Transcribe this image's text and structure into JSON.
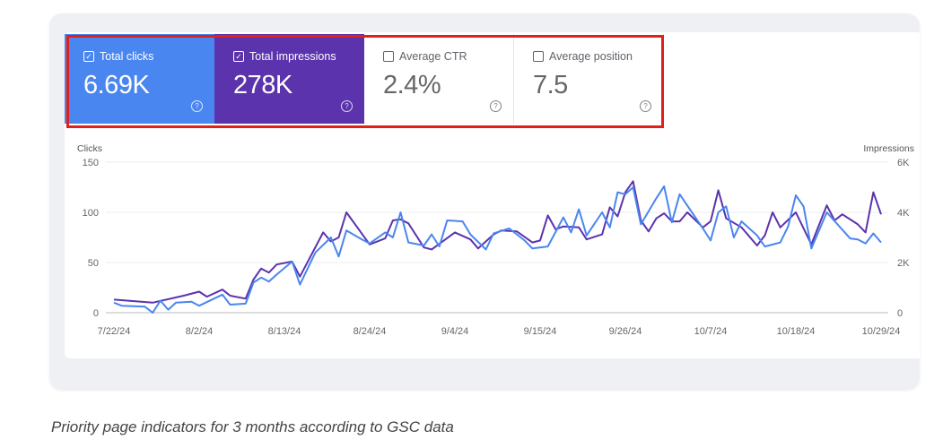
{
  "scorecards": [
    {
      "label": "Total clicks",
      "value": "6.69K",
      "checked": true,
      "color": "#4a86f0"
    },
    {
      "label": "Total impressions",
      "value": "278K",
      "checked": true,
      "color": "#5b33ad"
    },
    {
      "label": "Average CTR",
      "value": "2.4%",
      "checked": false
    },
    {
      "label": "Average position",
      "value": "7.5",
      "checked": false
    }
  ],
  "highlight_color": "#e0201b",
  "caption": "Priority page indicators for 3 months according to GSC data",
  "chart_data": {
    "type": "line",
    "ylabel_left": "Clicks",
    "ylabel_right": "Impressions",
    "ylim_left": [
      0,
      150
    ],
    "ylim_right": [
      0,
      6000
    ],
    "yticks_left": [
      "0",
      "50",
      "100",
      "150"
    ],
    "yticks_right": [
      "0",
      "2K",
      "4K",
      "6K"
    ],
    "xticks": [
      "7/22/24",
      "8/2/24",
      "8/13/24",
      "8/24/24",
      "9/4/24",
      "9/15/24",
      "9/26/24",
      "10/7/24",
      "10/18/24",
      "10/29/24"
    ],
    "xlim": [
      "2024-07-22",
      "2024-10-29"
    ],
    "grid": true,
    "series": [
      {
        "name": "Clicks",
        "axis": "left",
        "color": "#4a86f0",
        "points": [
          [
            "2024-07-22",
            10
          ],
          [
            "2024-07-23",
            7
          ],
          [
            "2024-07-26",
            6
          ],
          [
            "2024-07-27",
            0
          ],
          [
            "2024-07-28",
            12
          ],
          [
            "2024-07-29",
            3
          ],
          [
            "2024-07-30",
            10
          ],
          [
            "2024-08-01",
            11
          ],
          [
            "2024-08-02",
            7
          ],
          [
            "2024-08-05",
            18
          ],
          [
            "2024-08-06",
            8
          ],
          [
            "2024-08-08",
            9
          ],
          [
            "2024-08-09",
            30
          ],
          [
            "2024-08-10",
            35
          ],
          [
            "2024-08-11",
            31
          ],
          [
            "2024-08-12",
            38
          ],
          [
            "2024-08-14",
            51
          ],
          [
            "2024-08-15",
            28
          ],
          [
            "2024-08-17",
            60
          ],
          [
            "2024-08-19",
            75
          ],
          [
            "2024-08-20",
            56
          ],
          [
            "2024-08-21",
            82
          ],
          [
            "2024-08-23",
            73
          ],
          [
            "2024-08-24",
            69
          ],
          [
            "2024-08-26",
            80
          ],
          [
            "2024-08-27",
            75
          ],
          [
            "2024-08-28",
            100
          ],
          [
            "2024-08-29",
            70
          ],
          [
            "2024-08-31",
            67
          ],
          [
            "2024-09-01",
            78
          ],
          [
            "2024-09-02",
            66
          ],
          [
            "2024-09-03",
            92
          ],
          [
            "2024-09-05",
            91
          ],
          [
            "2024-09-06",
            78
          ],
          [
            "2024-09-08",
            63
          ],
          [
            "2024-09-09",
            79
          ],
          [
            "2024-09-11",
            84
          ],
          [
            "2024-09-13",
            72
          ],
          [
            "2024-09-14",
            64
          ],
          [
            "2024-09-16",
            66
          ],
          [
            "2024-09-18",
            95
          ],
          [
            "2024-09-19",
            80
          ],
          [
            "2024-09-20",
            103
          ],
          [
            "2024-09-21",
            77
          ],
          [
            "2024-09-23",
            100
          ],
          [
            "2024-09-24",
            85
          ],
          [
            "2024-09-25",
            120
          ],
          [
            "2024-09-26",
            118
          ],
          [
            "2024-09-27",
            125
          ],
          [
            "2024-09-28",
            88
          ],
          [
            "2024-09-30",
            114
          ],
          [
            "2024-10-01",
            126
          ],
          [
            "2024-10-02",
            90
          ],
          [
            "2024-10-03",
            118
          ],
          [
            "2024-10-06",
            84
          ],
          [
            "2024-10-07",
            72
          ],
          [
            "2024-10-08",
            100
          ],
          [
            "2024-10-09",
            106
          ],
          [
            "2024-10-10",
            75
          ],
          [
            "2024-10-11",
            91
          ],
          [
            "2024-10-13",
            77
          ],
          [
            "2024-10-14",
            66
          ],
          [
            "2024-10-16",
            70
          ],
          [
            "2024-10-17",
            86
          ],
          [
            "2024-10-18",
            117
          ],
          [
            "2024-10-19",
            106
          ],
          [
            "2024-10-20",
            64
          ],
          [
            "2024-10-22",
            100
          ],
          [
            "2024-10-25",
            74
          ],
          [
            "2024-10-26",
            73
          ],
          [
            "2024-10-27",
            69
          ],
          [
            "2024-10-28",
            79
          ],
          [
            "2024-10-29",
            70
          ]
        ]
      },
      {
        "name": "Impressions",
        "axis": "right",
        "color": "#5b33ad",
        "points": [
          [
            "2024-07-22",
            520
          ],
          [
            "2024-07-27",
            400
          ],
          [
            "2024-07-31",
            680
          ],
          [
            "2024-08-02",
            840
          ],
          [
            "2024-08-03",
            640
          ],
          [
            "2024-08-05",
            920
          ],
          [
            "2024-08-06",
            680
          ],
          [
            "2024-08-08",
            560
          ],
          [
            "2024-08-09",
            1320
          ],
          [
            "2024-08-10",
            1760
          ],
          [
            "2024-08-11",
            1600
          ],
          [
            "2024-08-12",
            1920
          ],
          [
            "2024-08-14",
            2040
          ],
          [
            "2024-08-15",
            1440
          ],
          [
            "2024-08-18",
            3200
          ],
          [
            "2024-08-19",
            2840
          ],
          [
            "2024-08-20",
            3000
          ],
          [
            "2024-08-21",
            4000
          ],
          [
            "2024-08-24",
            2720
          ],
          [
            "2024-08-26",
            2960
          ],
          [
            "2024-08-27",
            3680
          ],
          [
            "2024-08-28",
            3720
          ],
          [
            "2024-08-29",
            3560
          ],
          [
            "2024-08-31",
            2600
          ],
          [
            "2024-09-01",
            2520
          ],
          [
            "2024-09-04",
            3200
          ],
          [
            "2024-09-06",
            2920
          ],
          [
            "2024-09-07",
            2560
          ],
          [
            "2024-09-09",
            3120
          ],
          [
            "2024-09-10",
            3280
          ],
          [
            "2024-09-12",
            3240
          ],
          [
            "2024-09-14",
            2800
          ],
          [
            "2024-09-15",
            2880
          ],
          [
            "2024-09-16",
            3880
          ],
          [
            "2024-09-17",
            3320
          ],
          [
            "2024-09-18",
            3440
          ],
          [
            "2024-09-20",
            3400
          ],
          [
            "2024-09-21",
            2920
          ],
          [
            "2024-09-23",
            3120
          ],
          [
            "2024-09-24",
            4200
          ],
          [
            "2024-09-25",
            3840
          ],
          [
            "2024-09-26",
            4800
          ],
          [
            "2024-09-27",
            5240
          ],
          [
            "2024-09-28",
            3680
          ],
          [
            "2024-09-29",
            3240
          ],
          [
            "2024-09-30",
            3760
          ],
          [
            "2024-10-01",
            3960
          ],
          [
            "2024-10-02",
            3640
          ],
          [
            "2024-10-03",
            3640
          ],
          [
            "2024-10-04",
            4000
          ],
          [
            "2024-10-06",
            3400
          ],
          [
            "2024-10-07",
            3640
          ],
          [
            "2024-10-08",
            4880
          ],
          [
            "2024-10-09",
            3760
          ],
          [
            "2024-10-11",
            3400
          ],
          [
            "2024-10-13",
            2680
          ],
          [
            "2024-10-14",
            3080
          ],
          [
            "2024-10-15",
            4000
          ],
          [
            "2024-10-16",
            3400
          ],
          [
            "2024-10-18",
            4000
          ],
          [
            "2024-10-20",
            2720
          ],
          [
            "2024-10-22",
            4280
          ],
          [
            "2024-10-23",
            3680
          ],
          [
            "2024-10-24",
            3920
          ],
          [
            "2024-10-26",
            3520
          ],
          [
            "2024-10-27",
            3200
          ],
          [
            "2024-10-28",
            4800
          ],
          [
            "2024-10-29",
            3920
          ]
        ]
      }
    ]
  }
}
